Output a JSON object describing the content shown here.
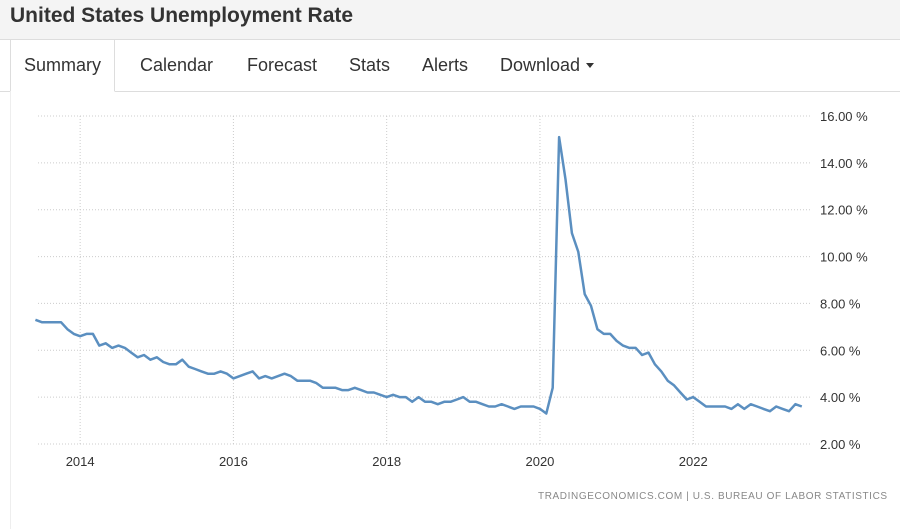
{
  "header": {
    "title": "United States Unemployment Rate"
  },
  "tabs": [
    {
      "label": "Summary",
      "active": true
    },
    {
      "label": "Calendar"
    },
    {
      "label": "Forecast"
    },
    {
      "label": "Stats"
    },
    {
      "label": "Alerts"
    },
    {
      "label": "Download"
    }
  ],
  "source": "TRADINGECONOMICS.COM  |  U.S. BUREAU OF LABOR STATISTICS",
  "chart_data": {
    "type": "line",
    "title": "United States Unemployment Rate",
    "xlabel": "",
    "ylabel": "",
    "x_start": "2013-06",
    "frequency": "monthly",
    "x_ticks": [
      "2014",
      "2016",
      "2018",
      "2020",
      "2022"
    ],
    "y_ticks": [
      "2.00 %",
      "4.00 %",
      "6.00 %",
      "8.00 %",
      "10.00 %",
      "12.00 %",
      "14.00 %",
      "16.00 %"
    ],
    "ylim": [
      2,
      16
    ],
    "xlim": [
      2013.45,
      2023.55
    ],
    "grid": true,
    "line_color": "#5b8fc0",
    "series": [
      {
        "name": "Unemployment Rate",
        "values": [
          7.3,
          7.2,
          7.2,
          7.2,
          7.2,
          6.9,
          6.7,
          6.6,
          6.7,
          6.7,
          6.2,
          6.3,
          6.1,
          6.2,
          6.1,
          5.9,
          5.7,
          5.8,
          5.6,
          5.7,
          5.5,
          5.4,
          5.4,
          5.6,
          5.3,
          5.2,
          5.1,
          5.0,
          5.0,
          5.1,
          5.0,
          4.8,
          4.9,
          5.0,
          5.1,
          4.8,
          4.9,
          4.8,
          4.9,
          5.0,
          4.9,
          4.7,
          4.7,
          4.7,
          4.6,
          4.4,
          4.4,
          4.4,
          4.3,
          4.3,
          4.4,
          4.3,
          4.2,
          4.2,
          4.1,
          4.0,
          4.1,
          4.0,
          4.0,
          3.8,
          4.0,
          3.8,
          3.8,
          3.7,
          3.8,
          3.8,
          3.9,
          4.0,
          3.8,
          3.8,
          3.7,
          3.6,
          3.6,
          3.7,
          3.6,
          3.5,
          3.6,
          3.6,
          3.6,
          3.5,
          3.3,
          4.4,
          15.1,
          13.3,
          11.0,
          10.2,
          8.4,
          7.9,
          6.9,
          6.7,
          6.7,
          6.4,
          6.2,
          6.1,
          6.1,
          5.8,
          5.9,
          5.4,
          5.1,
          4.7,
          4.5,
          4.2,
          3.9,
          4.0,
          3.8,
          3.6,
          3.6,
          3.6,
          3.6,
          3.5,
          3.7,
          3.5,
          3.7,
          3.6,
          3.5,
          3.4,
          3.6,
          3.5,
          3.4,
          3.7,
          3.6
        ]
      }
    ]
  }
}
